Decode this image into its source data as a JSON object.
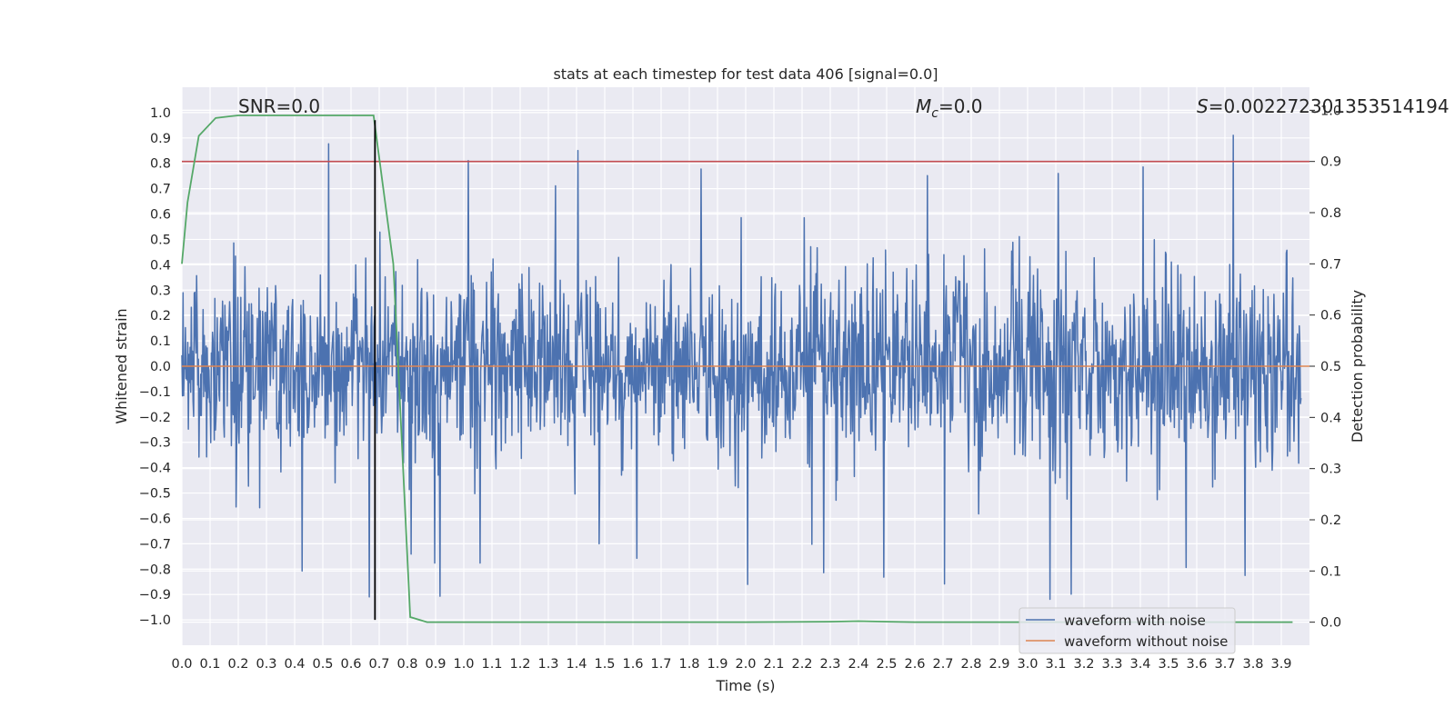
{
  "chart_data": {
    "type": "line",
    "title": "stats at each timestep for test data 406 [signal=0.0]",
    "xlabel": "Time (s)",
    "ylabel_left": "Whitened strain",
    "ylabel_right": "Detection probability",
    "xlim": [
      0.0,
      4.0
    ],
    "ylim_left": [
      -1.1,
      1.1
    ],
    "ylim_right": [
      -0.045,
      1.045
    ],
    "x_ticks": [
      "0.0",
      "0.1",
      "0.2",
      "0.3",
      "0.4",
      "0.5",
      "0.6",
      "0.7",
      "0.8",
      "0.9",
      "1.0",
      "1.1",
      "1.2",
      "1.3",
      "1.4",
      "1.5",
      "1.6",
      "1.7",
      "1.8",
      "1.9",
      "2.0",
      "2.1",
      "2.2",
      "2.3",
      "2.4",
      "2.5",
      "2.6",
      "2.7",
      "2.8",
      "2.9",
      "3.0",
      "3.1",
      "3.2",
      "3.3",
      "3.4",
      "3.5",
      "3.6",
      "3.7",
      "3.8",
      "3.9"
    ],
    "y_ticks_left": [
      "1.0",
      "0.9",
      "0.8",
      "0.7",
      "0.6",
      "0.5",
      "0.4",
      "0.3",
      "0.2",
      "0.1",
      "0.0",
      "−0.1",
      "−0.2",
      "−0.3",
      "−0.4",
      "−0.5",
      "−0.6",
      "−0.7",
      "−0.8",
      "−0.9",
      "−1.0"
    ],
    "y_ticks_right": [
      "1.0",
      "0.9",
      "0.8",
      "0.7",
      "0.6",
      "0.5",
      "0.4",
      "0.3",
      "0.2",
      "0.1",
      "0.0"
    ],
    "grid": true,
    "legend_position": "bottom-right",
    "annotations": {
      "snr": "SNR=0.0",
      "mc_symbol": "M",
      "mc_sub": "c",
      "mc_value": "=0.0",
      "s_symbol": "S",
      "s_value": "=0.002272301353514194"
    },
    "series": [
      {
        "name": "waveform with noise",
        "color": "#4c72b0",
        "axis": "left",
        "description_samples": 4096,
        "envelope_approx": {
          "max": 0.95,
          "min": -1.0
        }
      },
      {
        "name": "waveform without noise",
        "color": "#dd8452",
        "axis": "left",
        "x": [
          0.0,
          4.0
        ],
        "y": [
          0.0,
          0.0
        ]
      },
      {
        "name": "",
        "color": "#55a868",
        "axis": "right",
        "x": [
          0.0,
          0.02,
          0.06,
          0.12,
          0.2,
          0.3,
          0.4,
          0.5,
          0.6,
          0.68,
          0.75,
          0.81,
          0.87,
          1.0,
          1.5,
          2.0,
          2.3,
          2.4,
          2.5,
          2.6,
          3.0,
          3.5,
          3.94
        ],
        "y": [
          0.7,
          0.82,
          0.95,
          0.985,
          0.99,
          0.99,
          0.99,
          0.99,
          0.99,
          0.99,
          0.7,
          0.01,
          0.0,
          0.0,
          0.0,
          0.0,
          0.001,
          0.002,
          0.001,
          0.0,
          0.0,
          0.0,
          0.0
        ]
      }
    ],
    "threshold_right": {
      "value": 0.9,
      "color": "#c44e52"
    },
    "vertical_marker": {
      "x": 0.685,
      "y_from": -1.0,
      "y_to": 0.97,
      "color": "#000000"
    }
  }
}
